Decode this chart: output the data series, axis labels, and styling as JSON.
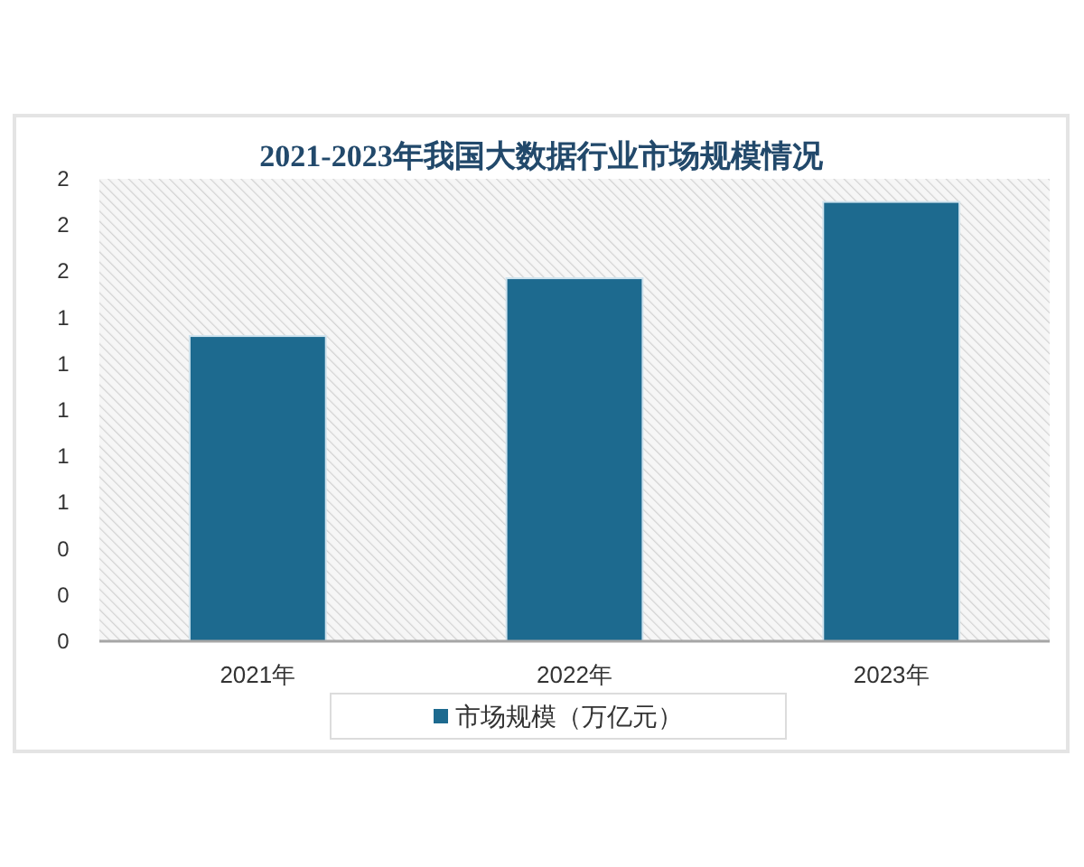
{
  "chart_data": {
    "type": "bar",
    "title": "2021-2023年我国大数据行业市场规模情况",
    "categories": [
      "2021年",
      "2022年",
      "2023年"
    ],
    "series": [
      {
        "name": "市场规模（万亿元）",
        "color": "#1d6a8f",
        "values": [
          1.32,
          1.57,
          1.9
        ]
      }
    ],
    "ylim": [
      0,
      2
    ],
    "yticks": [
      0,
      {
        "value": 0.2,
        "label": "0"
      },
      {
        "value": 0.4,
        "label": "0"
      },
      {
        "value": 0.6,
        "label": "1"
      },
      {
        "value": 0.8,
        "label": "1"
      },
      1,
      {
        "value": 1.2,
        "label": "1"
      },
      {
        "value": 1.4,
        "label": "1"
      },
      {
        "value": 1.6,
        "label": "2"
      },
      {
        "value": 1.8,
        "label": "2"
      },
      2
    ],
    "legend": "bottom"
  }
}
